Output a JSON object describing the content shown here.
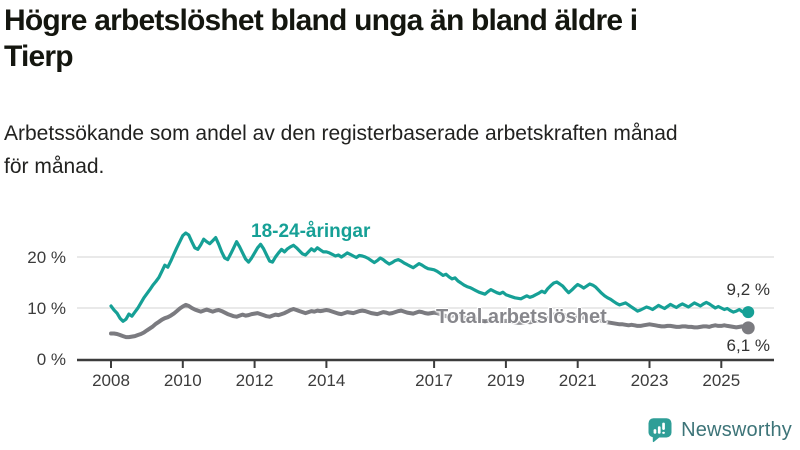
{
  "header": {
    "title_lines": [
      "Högre arbetslöshet bland unga än bland äldre i",
      "Tierp"
    ],
    "subtitle_lines": [
      "Arbetssökande som andel av den registerbaserade arbetskraften månad",
      "för månad."
    ]
  },
  "chart_data": {
    "type": "line",
    "title": "Högre arbetslöshet bland unga än bland äldre i Tierp",
    "subtitle": "Arbetssökande som andel av den registerbaserade arbetskraften månad för månad.",
    "x_unit": "month",
    "x_start": "2008-01",
    "x_end": "2025-10",
    "grid": "horizontal",
    "x_axis": {
      "ticks": [
        2008,
        2010,
        2012,
        2014,
        2017,
        2019,
        2021,
        2023,
        2025
      ]
    },
    "y_axis": {
      "range": [
        0,
        27
      ],
      "ticks": [
        {
          "value": 0,
          "label": "0 %"
        },
        {
          "value": 10,
          "label": "10 %"
        },
        {
          "value": 20,
          "label": "20 %"
        }
      ]
    },
    "series": [
      {
        "name": "18-24-åringar",
        "color": "#16a096",
        "end_label": "9,2 %",
        "last_value": 9.2,
        "values": [
          10.4,
          9.6,
          9.0,
          8.0,
          7.4,
          7.8,
          8.8,
          8.4,
          9.2,
          10.0,
          11.0,
          12.0,
          12.8,
          13.6,
          14.5,
          15.2,
          16.0,
          17.2,
          18.4,
          18.0,
          19.2,
          20.5,
          21.8,
          23.0,
          24.2,
          24.7,
          24.3,
          23.0,
          21.8,
          21.5,
          22.4,
          23.5,
          23.0,
          22.6,
          23.2,
          23.8,
          22.5,
          21.0,
          19.8,
          19.5,
          20.6,
          21.8,
          23.0,
          22.0,
          20.8,
          19.6,
          19.0,
          19.8,
          20.8,
          21.8,
          22.5,
          21.6,
          20.4,
          19.2,
          19.0,
          20.0,
          20.8,
          21.5,
          21.0,
          21.6,
          22.0,
          22.3,
          21.8,
          21.2,
          20.6,
          20.4,
          21.0,
          21.6,
          21.2,
          21.8,
          21.4,
          21.0,
          21.0,
          20.8,
          20.5,
          20.2,
          20.4,
          20.0,
          20.4,
          20.8,
          20.5,
          20.2,
          19.9,
          20.3,
          20.2,
          20.0,
          19.7,
          19.3,
          18.9,
          19.3,
          19.8,
          19.5,
          19.0,
          18.6,
          18.9,
          19.3,
          19.5,
          19.2,
          18.8,
          18.5,
          18.2,
          17.9,
          18.3,
          18.7,
          18.4,
          18.0,
          17.7,
          17.6,
          17.5,
          17.2,
          16.8,
          16.4,
          16.6,
          16.1,
          15.7,
          15.9,
          15.3,
          14.9,
          14.5,
          14.2,
          14.0,
          13.7,
          13.4,
          13.1,
          12.9,
          12.7,
          13.2,
          13.6,
          13.3,
          13.0,
          12.8,
          13.1,
          12.6,
          12.4,
          12.2,
          12.0,
          11.9,
          11.8,
          12.1,
          12.4,
          12.1,
          12.3,
          12.6,
          12.9,
          13.3,
          13.0,
          13.8,
          14.4,
          14.9,
          15.1,
          14.7,
          14.3,
          13.6,
          13.0,
          13.5,
          14.1,
          14.6,
          14.3,
          13.9,
          14.3,
          14.7,
          14.5,
          14.1,
          13.5,
          12.9,
          12.4,
          12.0,
          11.7,
          11.3,
          10.9,
          10.6,
          10.8,
          11.0,
          10.6,
          10.2,
          9.8,
          9.4,
          9.6,
          9.9,
          10.2,
          10.0,
          9.7,
          10.1,
          10.5,
          10.2,
          9.9,
          10.3,
          10.7,
          10.4,
          10.1,
          10.5,
          10.8,
          10.5,
          10.2,
          10.6,
          11.0,
          10.7,
          10.4,
          10.8,
          11.1,
          10.8,
          10.4,
          10.0,
          10.3,
          10.0,
          9.7,
          9.9,
          9.5,
          9.2,
          9.4,
          9.7,
          9.3,
          9.0,
          9.2
        ]
      },
      {
        "name": "Total arbetslöshet",
        "color": "#7b7b80",
        "end_label": "6,1 %",
        "last_value": 6.1,
        "values": [
          5.0,
          5.0,
          4.9,
          4.7,
          4.5,
          4.3,
          4.3,
          4.4,
          4.5,
          4.7,
          4.9,
          5.2,
          5.6,
          6.0,
          6.4,
          6.9,
          7.3,
          7.7,
          8.0,
          8.2,
          8.5,
          8.9,
          9.4,
          9.9,
          10.3,
          10.6,
          10.4,
          10.0,
          9.7,
          9.5,
          9.3,
          9.5,
          9.7,
          9.5,
          9.3,
          9.5,
          9.6,
          9.4,
          9.1,
          8.8,
          8.6,
          8.4,
          8.3,
          8.5,
          8.7,
          8.5,
          8.6,
          8.8,
          8.9,
          9.0,
          8.8,
          8.6,
          8.4,
          8.3,
          8.5,
          8.7,
          8.6,
          8.8,
          9.0,
          9.3,
          9.6,
          9.8,
          9.6,
          9.4,
          9.2,
          9.0,
          9.2,
          9.4,
          9.3,
          9.5,
          9.4,
          9.5,
          9.6,
          9.5,
          9.3,
          9.1,
          8.9,
          8.8,
          9.0,
          9.2,
          9.1,
          9.0,
          9.2,
          9.4,
          9.5,
          9.4,
          9.2,
          9.0,
          8.9,
          8.8,
          9.0,
          9.2,
          9.1,
          8.9,
          9.0,
          9.2,
          9.4,
          9.5,
          9.3,
          9.1,
          9.0,
          8.9,
          9.1,
          9.3,
          9.2,
          9.0,
          8.9,
          9.0,
          9.1,
          9.0,
          8.8,
          8.6,
          8.4,
          8.3,
          8.5,
          8.6,
          8.4,
          8.2,
          8.1,
          8.0,
          8.0,
          7.9,
          7.8,
          7.6,
          7.5,
          7.4,
          7.5,
          7.6,
          7.5,
          7.4,
          7.3,
          7.4,
          7.5,
          7.4,
          7.3,
          7.2,
          7.1,
          7.1,
          7.2,
          7.3,
          7.2,
          7.3,
          7.4,
          7.5,
          7.7,
          7.6,
          7.9,
          8.4,
          8.7,
          8.9,
          8.8,
          8.7,
          8.5,
          8.3,
          8.2,
          8.3,
          8.4,
          8.3,
          8.1,
          8.0,
          7.9,
          7.8,
          7.8,
          7.7,
          7.5,
          7.3,
          7.2,
          7.1,
          7.0,
          6.9,
          6.8,
          6.8,
          6.7,
          6.6,
          6.7,
          6.6,
          6.5,
          6.5,
          6.6,
          6.7,
          6.8,
          6.7,
          6.6,
          6.5,
          6.4,
          6.4,
          6.5,
          6.5,
          6.4,
          6.3,
          6.3,
          6.4,
          6.4,
          6.3,
          6.3,
          6.2,
          6.2,
          6.3,
          6.4,
          6.4,
          6.3,
          6.5,
          6.6,
          6.5,
          6.5,
          6.6,
          6.5,
          6.4,
          6.3,
          6.2,
          6.3,
          6.4,
          6.2,
          6.1
        ]
      }
    ]
  },
  "footer": {
    "brand": "Newsworthy"
  },
  "colors": {
    "accent_teal": "#16a096",
    "line_gray": "#7b7b80",
    "axis": "#3c3c3c",
    "gridline": "#dcdcdc",
    "logo_bubble": "#2f9e97",
    "logo_text": "#3d7478"
  }
}
